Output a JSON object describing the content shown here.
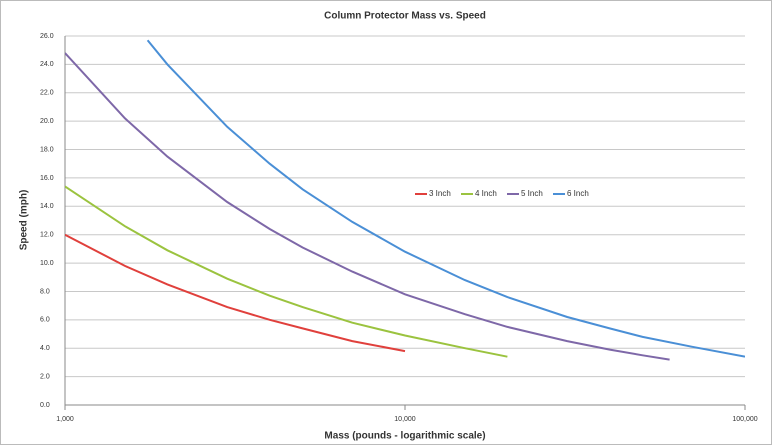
{
  "chart_data": {
    "type": "line",
    "title": "Column Protector Mass vs. Speed",
    "x_label": "Mass (pounds - logarithmic scale)",
    "y_label": "Speed (mph)",
    "xscale": "log",
    "xlim": [
      1000,
      100000
    ],
    "xticks": [
      {
        "value": 1000,
        "label": "1,000"
      },
      {
        "value": 10000,
        "label": "10,000"
      },
      {
        "value": 100000,
        "label": "100,000"
      }
    ],
    "ylim": [
      0,
      26
    ],
    "yticks": [
      {
        "value": 0,
        "label": "0.0"
      },
      {
        "value": 2,
        "label": "2.0"
      },
      {
        "value": 4,
        "label": "4.0"
      },
      {
        "value": 6,
        "label": "6.0"
      },
      {
        "value": 8,
        "label": "8.0"
      },
      {
        "value": 10,
        "label": "10.0"
      },
      {
        "value": 12,
        "label": "12.0"
      },
      {
        "value": 14,
        "label": "14.0"
      },
      {
        "value": 16,
        "label": "16.0"
      },
      {
        "value": 18,
        "label": "18.0"
      },
      {
        "value": 20,
        "label": "20.0"
      },
      {
        "value": 22,
        "label": "22.0"
      },
      {
        "value": 24,
        "label": "24.0"
      },
      {
        "value": 26,
        "label": "26.0"
      }
    ],
    "grid": true,
    "legend": "right",
    "series": [
      {
        "name": "3 Inch",
        "color": "#e0403c",
        "x": [
          1000,
          1500,
          2000,
          3000,
          4000,
          5000,
          7000,
          10000
        ],
        "values": [
          12.0,
          9.8,
          8.5,
          6.9,
          6.0,
          5.4,
          4.5,
          3.8
        ]
      },
      {
        "name": "4 Inch",
        "color": "#9bc33f",
        "x": [
          1000,
          1500,
          2000,
          3000,
          4000,
          5000,
          7000,
          10000,
          15000,
          20000
        ],
        "values": [
          15.4,
          12.6,
          10.9,
          8.9,
          7.7,
          6.9,
          5.8,
          4.9,
          4.0,
          3.4
        ]
      },
      {
        "name": "5 Inch",
        "color": "#7e68a8",
        "x": [
          1000,
          1500,
          2000,
          3000,
          4000,
          5000,
          7000,
          10000,
          15000,
          20000,
          30000,
          40000,
          50000,
          60000
        ],
        "values": [
          24.8,
          20.2,
          17.5,
          14.3,
          12.4,
          11.1,
          9.4,
          7.8,
          6.4,
          5.5,
          4.5,
          3.9,
          3.5,
          3.2
        ]
      },
      {
        "name": "6 Inch",
        "color": "#4a8fd6",
        "x": [
          1750,
          2000,
          3000,
          4000,
          5000,
          7000,
          10000,
          15000,
          20000,
          30000,
          40000,
          50000,
          70000,
          100000
        ],
        "values": [
          25.7,
          24.0,
          19.6,
          17.0,
          15.2,
          12.9,
          10.8,
          8.8,
          7.6,
          6.2,
          5.4,
          4.8,
          4.1,
          3.4
        ]
      }
    ]
  }
}
